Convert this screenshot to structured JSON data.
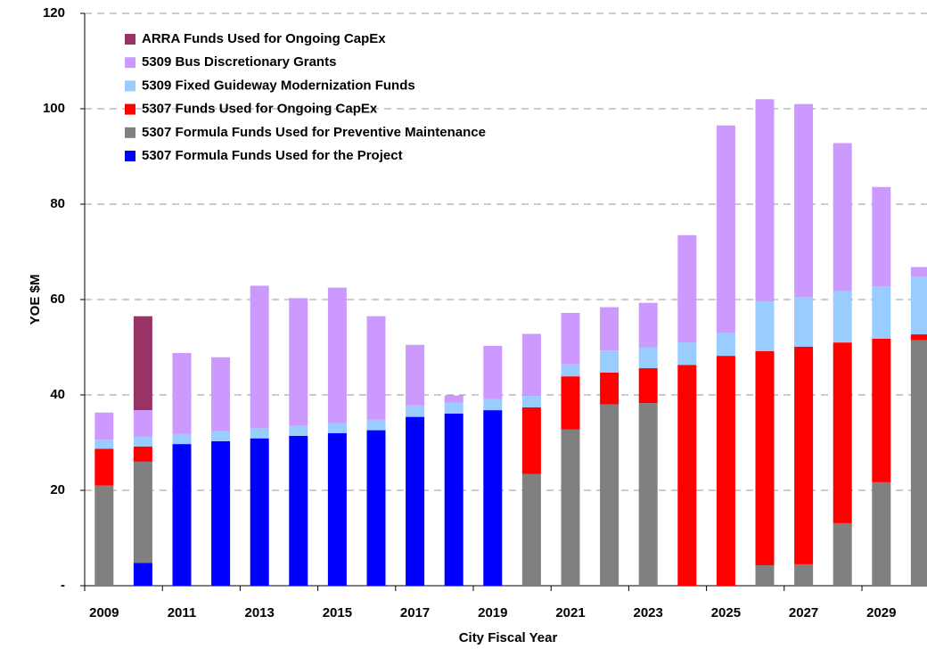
{
  "chart_data": {
    "type": "stacked_bar",
    "x_label": "City Fiscal Year",
    "y_label": "YOE $M",
    "categories": [
      "2009",
      null,
      "2011",
      null,
      "2013",
      null,
      "2015",
      null,
      "2017",
      null,
      "2019",
      null,
      "2021",
      null,
      "2023",
      null,
      "2025",
      null,
      "2027",
      null,
      "2029",
      null
    ],
    "ylim": [
      0,
      120
    ],
    "yticks": [
      {
        "value": 0,
        "label": "-"
      },
      20,
      40,
      60,
      80,
      100,
      120
    ],
    "grid": true,
    "legend": "upper left",
    "series": [
      {
        "name": "5307 Formula Funds Used for the Project",
        "color": "#0000ff",
        "values": [
          0,
          4.8,
          29.7,
          30.3,
          30.9,
          31.4,
          32,
          32.6,
          35.4,
          36.1,
          36.8,
          0,
          0,
          0,
          0,
          0,
          0,
          0,
          0,
          0,
          0,
          0
        ]
      },
      {
        "name": "5307 Formula Funds Used for Preventive Maintenance",
        "color": "#808080",
        "values": [
          21,
          21.2,
          0,
          0,
          0,
          0,
          0,
          0,
          0,
          0,
          0,
          23.4,
          32.8,
          38,
          38.3,
          0,
          0,
          4.3,
          4.5,
          13.1,
          21.7,
          51.5
        ]
      },
      {
        "name": "5307 Funds Used for Ongoing CapEx",
        "color": "#ff0000",
        "values": [
          7.7,
          3.2,
          0,
          0,
          0,
          0,
          0,
          0,
          0,
          0,
          0,
          14,
          11.1,
          6.7,
          7.3,
          46.3,
          48.2,
          44.9,
          45.6,
          37.9,
          30.1,
          1.2
        ]
      },
      {
        "name": "5309 Fixed Guideway Modernization Funds",
        "color": "#99ccff",
        "values": [
          1.9,
          2.1,
          2.1,
          2.1,
          2.1,
          2.1,
          2.1,
          2.2,
          2.4,
          2.3,
          2.3,
          2.4,
          2.5,
          4.6,
          4.4,
          4.7,
          4.8,
          10.4,
          10.4,
          10.8,
          11,
          12.1
        ]
      },
      {
        "name": "5309 Bus Discretionary Grants",
        "color": "#cc99ff",
        "values": [
          5.7,
          5.5,
          17,
          15.5,
          29.9,
          26.8,
          28.4,
          21.7,
          12.7,
          1.5,
          11.2,
          13,
          10.8,
          9.1,
          9.3,
          22.5,
          43.5,
          42.4,
          40.5,
          31,
          20.8,
          2
        ]
      },
      {
        "name": "ARRA Funds Used for Ongoing CapEx",
        "color": "#993366",
        "values": [
          0,
          19.7,
          0,
          0,
          0,
          0,
          0,
          0,
          0,
          0,
          0,
          0,
          0,
          0,
          0,
          0,
          0,
          0,
          0,
          0,
          0,
          0
        ]
      }
    ]
  }
}
